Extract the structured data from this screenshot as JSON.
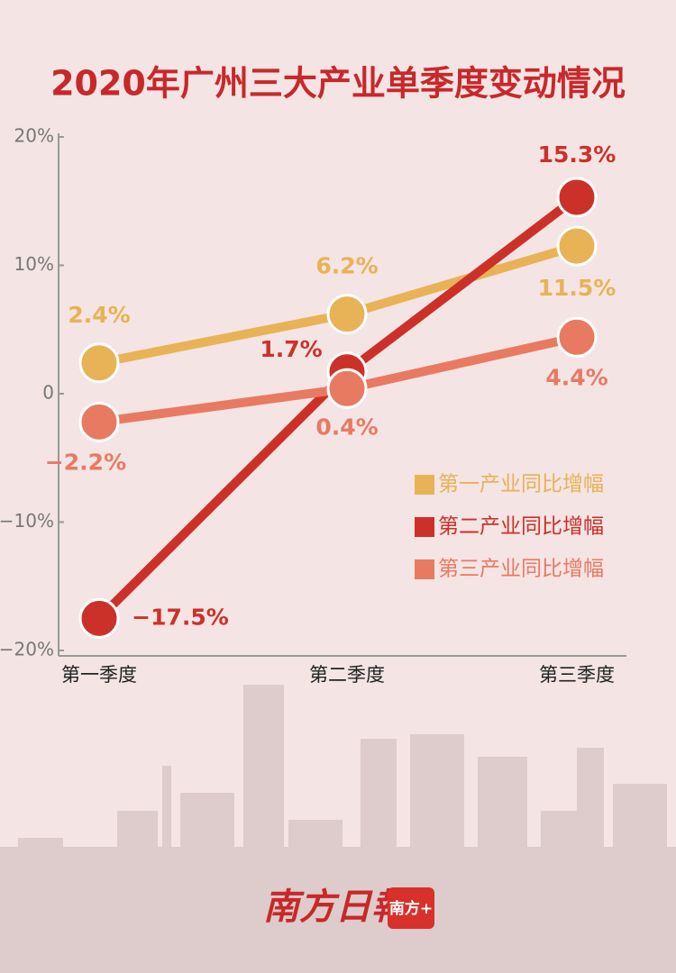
{
  "chart_data": {
    "type": "line",
    "title": "2020年广州三大产业单季度变动情况",
    "categories": [
      "第一季度",
      "第二季度",
      "第三季度"
    ],
    "series": [
      {
        "name": "第一产业同比增幅",
        "color": "#e8b256",
        "values": [
          2.4,
          6.2,
          11.5
        ],
        "value_labels": [
          "2.4%",
          "6.2%",
          "11.5%"
        ]
      },
      {
        "name": "第二产业同比增幅",
        "color": "#cc3129",
        "values": [
          -17.5,
          1.7,
          15.3
        ],
        "value_labels": [
          "−17.5%",
          "1.7%",
          "15.3%"
        ]
      },
      {
        "name": "第三产业同比增幅",
        "color": "#e87a62",
        "values": [
          -2.2,
          0.4,
          4.4
        ],
        "value_labels": [
          "−2.2%",
          "0.4%",
          "4.4%"
        ]
      }
    ],
    "ylim": [
      -20,
      20
    ],
    "yticks": [
      {
        "value": -20,
        "label": "−20%"
      },
      {
        "value": -10,
        "label": "−10%"
      },
      0,
      {
        "value": 10,
        "label": "10%"
      },
      {
        "value": 20,
        "label": "20%"
      }
    ],
    "legend": "right",
    "grid": false
  },
  "footer": {
    "logo": "南方日報",
    "badge": "南方+"
  }
}
